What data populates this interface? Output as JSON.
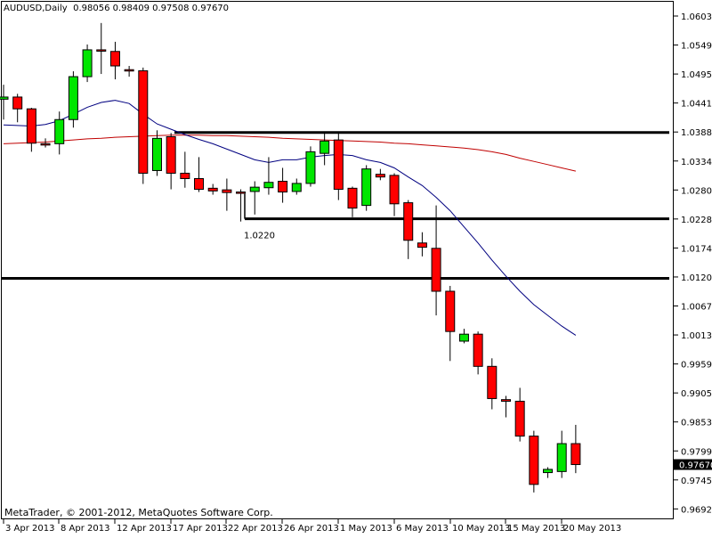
{
  "header": {
    "symbol": "AUDUSD,Daily",
    "ohlc": "0.98056 0.98409 0.97508 0.97670"
  },
  "footer": {
    "copyright": "MetaTrader, © 2001-2012, MetaQuotes Software Corp."
  },
  "chart_data": {
    "type": "candlestick",
    "title": "AUDUSD,Daily",
    "y_ticks": [
      "1.06030",
      "1.05490",
      "1.04950",
      "1.04410",
      "1.03885",
      "1.03345",
      "1.02805",
      "1.02280",
      "1.01740",
      "1.01200",
      "1.00675",
      "1.00135",
      "0.99595",
      "0.99055",
      "0.98530",
      "0.97990",
      "0.97450",
      "0.96925"
    ],
    "x_ticks": [
      "3 Apr 2013",
      "8 Apr 2013",
      "12 Apr 2013",
      "17 Apr 2013",
      "22 Apr 2013",
      "26 Apr 2013",
      "1 May 2013",
      "6 May 2013",
      "10 May 2013",
      "15 May 2013",
      "20 May 2013"
    ],
    "last_price": "0.97670",
    "annotation": "1.0220",
    "colors": {
      "bull": "#00e600",
      "bear": "#ff0000",
      "ma_fast": "#000080",
      "ma_slow": "#c00000",
      "support_lines": "#000000"
    },
    "horizontal_lines": [
      1.0386,
      1.0225,
      1.0114
    ],
    "candles": [
      {
        "o": 1.0448,
        "h": 1.0475,
        "l": 1.041,
        "c": 1.0452
      },
      {
        "o": 1.0452,
        "h": 1.0458,
        "l": 1.0405,
        "c": 1.043
      },
      {
        "o": 1.043,
        "h": 1.0432,
        "l": 1.035,
        "c": 1.0366
      },
      {
        "o": 1.0365,
        "h": 1.0375,
        "l": 1.0358,
        "c": 1.0363
      },
      {
        "o": 1.0365,
        "h": 1.0425,
        "l": 1.0345,
        "c": 1.041
      },
      {
        "o": 1.041,
        "h": 1.05,
        "l": 1.0395,
        "c": 1.049
      },
      {
        "o": 1.049,
        "h": 1.055,
        "l": 1.048,
        "c": 1.054
      },
      {
        "o": 1.054,
        "h": 1.059,
        "l": 1.0495,
        "c": 1.0538
      },
      {
        "o": 1.0537,
        "h": 1.0555,
        "l": 1.0485,
        "c": 1.051
      },
      {
        "o": 1.0503,
        "h": 1.051,
        "l": 1.049,
        "c": 1.0502
      },
      {
        "o": 1.0501,
        "h": 1.0507,
        "l": 1.029,
        "c": 1.031
      },
      {
        "o": 1.0315,
        "h": 1.039,
        "l": 1.0305,
        "c": 1.0375
      },
      {
        "o": 1.0378,
        "h": 1.0385,
        "l": 1.028,
        "c": 1.031
      },
      {
        "o": 1.031,
        "h": 1.035,
        "l": 1.0283,
        "c": 1.03
      },
      {
        "o": 1.03,
        "h": 1.034,
        "l": 1.0275,
        "c": 1.028
      },
      {
        "o": 1.0282,
        "h": 1.029,
        "l": 1.027,
        "c": 1.0277
      },
      {
        "o": 1.0279,
        "h": 1.03,
        "l": 1.024,
        "c": 1.0274
      },
      {
        "o": 1.0275,
        "h": 1.028,
        "l": 1.022,
        "c": 1.0273
      },
      {
        "o": 1.0276,
        "h": 1.0295,
        "l": 1.0233,
        "c": 1.0284
      },
      {
        "o": 1.0283,
        "h": 1.034,
        "l": 1.027,
        "c": 1.0293
      },
      {
        "o": 1.0295,
        "h": 1.032,
        "l": 1.0255,
        "c": 1.0275
      },
      {
        "o": 1.0276,
        "h": 1.03,
        "l": 1.027,
        "c": 1.0291
      },
      {
        "o": 1.0291,
        "h": 1.036,
        "l": 1.0285,
        "c": 1.035
      },
      {
        "o": 1.0347,
        "h": 1.0385,
        "l": 1.0325,
        "c": 1.037
      },
      {
        "o": 1.0372,
        "h": 1.0387,
        "l": 1.026,
        "c": 1.028
      },
      {
        "o": 1.0282,
        "h": 1.0285,
        "l": 1.0228,
        "c": 1.0245
      },
      {
        "o": 1.025,
        "h": 1.0325,
        "l": 1.024,
        "c": 1.0318
      },
      {
        "o": 1.0308,
        "h": 1.0318,
        "l": 1.0297,
        "c": 1.0303
      },
      {
        "o": 1.0306,
        "h": 1.031,
        "l": 1.023,
        "c": 1.0253
      },
      {
        "o": 1.0255,
        "h": 1.026,
        "l": 1.015,
        "c": 1.0185
      },
      {
        "o": 1.018,
        "h": 1.02,
        "l": 1.0155,
        "c": 1.0172
      },
      {
        "o": 1.017,
        "h": 1.025,
        "l": 1.0045,
        "c": 1.009
      },
      {
        "o": 1.009,
        "h": 1.01,
        "l": 0.996,
        "c": 1.0015
      },
      {
        "o": 0.9997,
        "h": 1.002,
        "l": 0.9993,
        "c": 1.001
      },
      {
        "o": 1.001,
        "h": 1.0015,
        "l": 0.9935,
        "c": 0.995
      },
      {
        "o": 0.995,
        "h": 0.9965,
        "l": 0.987,
        "c": 0.989
      },
      {
        "o": 0.9888,
        "h": 0.9895,
        "l": 0.9855,
        "c": 0.9885
      },
      {
        "o": 0.9885,
        "h": 0.991,
        "l": 0.981,
        "c": 0.982
      },
      {
        "o": 0.982,
        "h": 0.983,
        "l": 0.9715,
        "c": 0.973
      },
      {
        "o": 0.9752,
        "h": 0.9762,
        "l": 0.9742,
        "c": 0.9758
      },
      {
        "o": 0.9754,
        "h": 0.983,
        "l": 0.9742,
        "c": 0.9806
      },
      {
        "o": 0.9806,
        "h": 0.9841,
        "l": 0.9751,
        "c": 0.9767
      }
    ],
    "ma_fast": [
      1.04,
      1.0399,
      1.0398,
      1.0401,
      1.0408,
      1.042,
      1.0433,
      1.0442,
      1.0446,
      1.044,
      1.042,
      1.0402,
      1.0392,
      1.0382,
      1.0373,
      1.0365,
      1.0355,
      1.0345,
      1.0335,
      1.033,
      1.0335,
      1.0335,
      1.034,
      1.0343,
      1.0345,
      1.0343,
      1.0335,
      1.033,
      1.032,
      1.0303,
      1.0287,
      1.0265,
      1.024,
      1.021,
      1.018,
      1.0148,
      1.0118,
      1.009,
      1.0065,
      1.0045,
      1.0025,
      1.0008
    ],
    "ma_slow": [
      1.0365,
      1.0366,
      1.0367,
      1.0368,
      1.037,
      1.0372,
      1.0374,
      1.0375,
      1.0377,
      1.0378,
      1.0379,
      1.038,
      1.0381,
      1.0381,
      1.0381,
      1.038,
      1.038,
      1.0379,
      1.0378,
      1.0377,
      1.0375,
      1.0374,
      1.0373,
      1.0372,
      1.0371,
      1.037,
      1.0369,
      1.0368,
      1.0366,
      1.0365,
      1.0363,
      1.0361,
      1.0359,
      1.0357,
      1.0354,
      1.035,
      1.0345,
      1.0338,
      1.0332,
      1.0326,
      1.032,
      1.0314
    ]
  }
}
